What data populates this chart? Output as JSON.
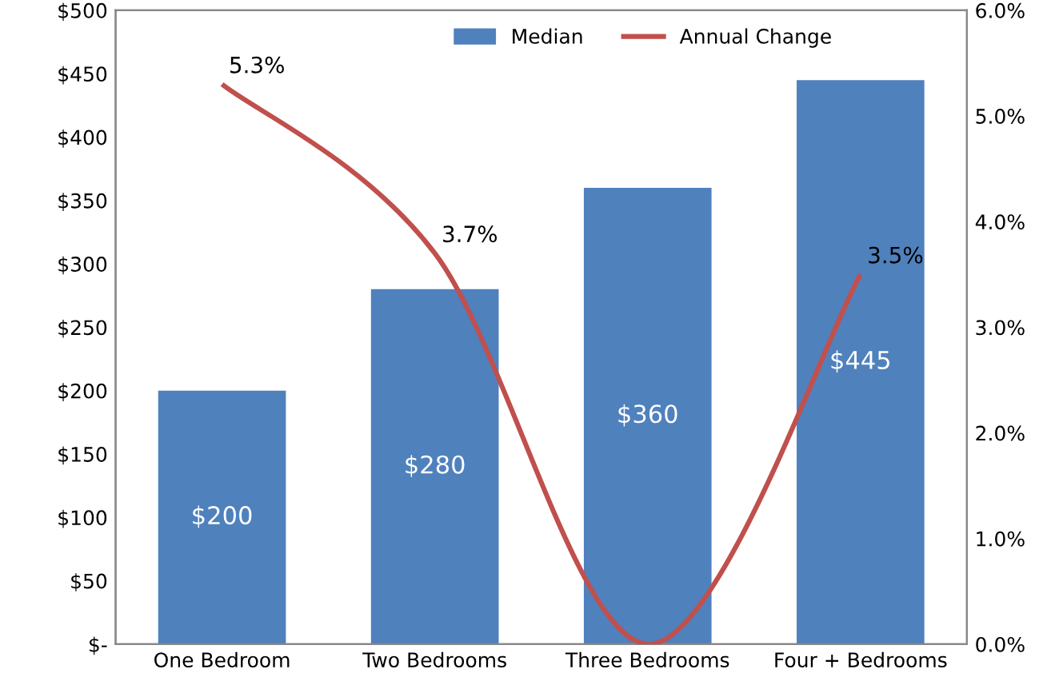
{
  "chart_data": {
    "type": "bar",
    "categories": [
      "One Bedroom",
      "Two Bedrooms",
      "Three Bedrooms",
      "Four + Bedrooms"
    ],
    "series": [
      {
        "name": "Median",
        "color": "#4f81bd",
        "values": [
          200,
          280,
          360,
          445
        ],
        "value_labels": [
          "$200",
          "$280",
          "$360",
          "$445"
        ]
      },
      {
        "name": "Annual Change",
        "type": "line",
        "axis": "y2",
        "color": "#c0504d",
        "values": [
          5.3,
          3.7,
          0.0,
          3.5
        ],
        "value_labels": [
          "5.3%",
          "3.7%",
          null,
          "3.5%"
        ]
      }
    ],
    "ylim": [
      0,
      500
    ],
    "yticks": [
      {
        "value": 0,
        "label": "$-"
      },
      {
        "value": 50,
        "label": "$50"
      },
      {
        "value": 100,
        "label": "$100"
      },
      {
        "value": 150,
        "label": "$150"
      },
      {
        "value": 200,
        "label": "$200"
      },
      {
        "value": 250,
        "label": "$250"
      },
      {
        "value": 300,
        "label": "$300"
      },
      {
        "value": 350,
        "label": "$350"
      },
      {
        "value": 400,
        "label": "$400"
      },
      {
        "value": 450,
        "label": "$450"
      },
      {
        "value": 500,
        "label": "$500"
      }
    ],
    "y2lim": [
      0,
      6
    ],
    "y2ticks": [
      {
        "value": 0,
        "label": "0.0%"
      },
      {
        "value": 1,
        "label": "1.0%"
      },
      {
        "value": 2,
        "label": "2.0%"
      },
      {
        "value": 3,
        "label": "3.0%"
      },
      {
        "value": 4,
        "label": "4.0%"
      },
      {
        "value": 5,
        "label": "5.0%"
      },
      {
        "value": 6,
        "label": "6.0%"
      }
    ],
    "legend": "top",
    "grid": false,
    "marker": "none",
    "line_style": "solid"
  }
}
